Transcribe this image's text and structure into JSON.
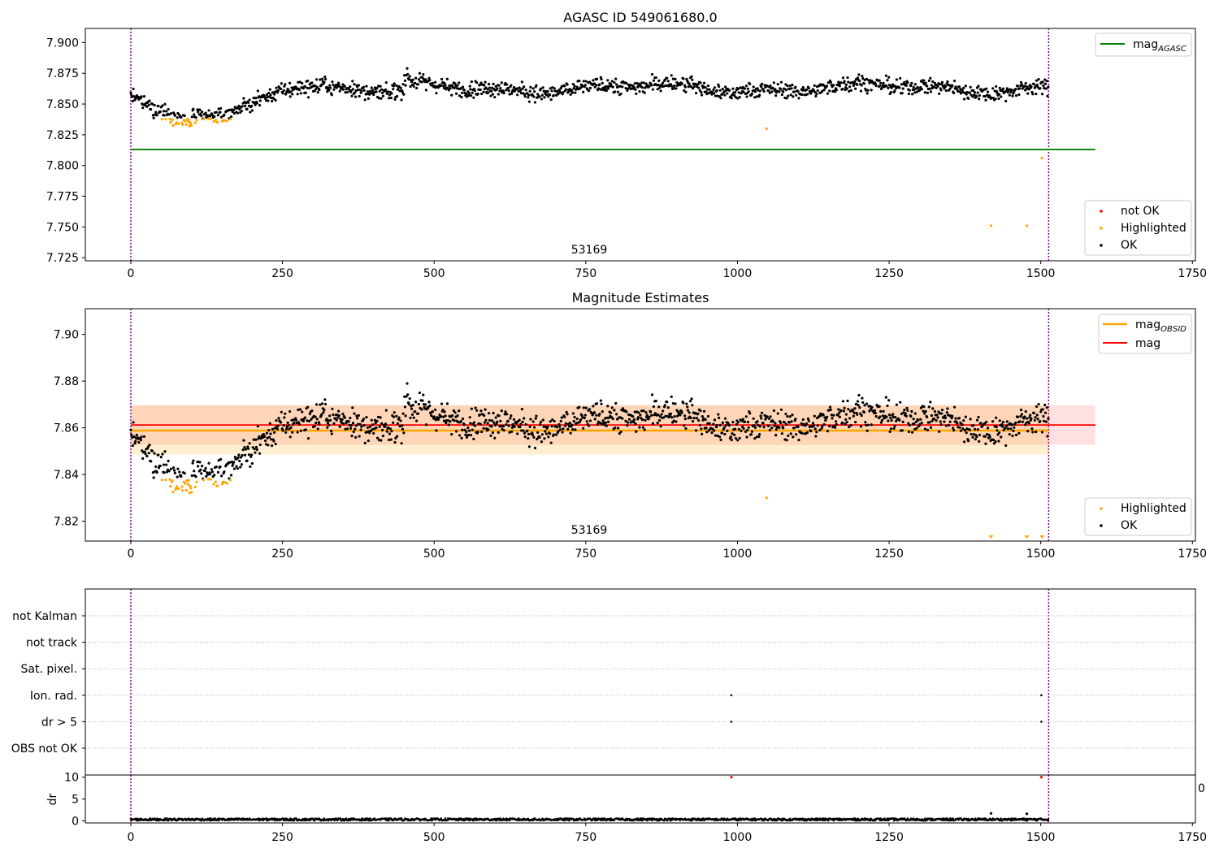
{
  "chart_data": [
    {
      "type": "scatter",
      "title": "AGASC ID 549061680.0",
      "xlim": [
        -75,
        1755
      ],
      "ylim": [
        7.7225,
        7.9115
      ],
      "xticks": [
        0,
        250,
        500,
        750,
        1000,
        1250,
        1500,
        1750
      ],
      "yticks": [
        7.725,
        7.75,
        7.775,
        7.8,
        7.825,
        7.85,
        7.875,
        7.9
      ],
      "ytick_decimals": 3,
      "grid": false,
      "annotation": "53169",
      "vlines": {
        "x": [
          0,
          1513
        ],
        "color": "#800080",
        "style": "dotted"
      },
      "mag_agasc_value": 7.813,
      "series_legend": {
        "placement": "lower-right",
        "entries": [
          {
            "label": "not OK",
            "color": "#ff0000"
          },
          {
            "label": "Highlighted",
            "color": "#ffa500"
          },
          {
            "label": "OK",
            "color": "#000000"
          }
        ]
      },
      "line_legend": {
        "placement": "upper-right",
        "entries": [
          {
            "label": "mag",
            "subscript": "AGASC",
            "color": "#008000"
          }
        ]
      },
      "highlighted_points": [
        [
          1048,
          7.83
        ],
        [
          1502,
          7.806
        ],
        [
          1418,
          7.751
        ],
        [
          1477,
          7.751
        ]
      ],
      "not_ok_points": []
    },
    {
      "type": "scatter",
      "title": "Magnitude Estimates",
      "xlim": [
        -75,
        1755
      ],
      "ylim": [
        7.8115,
        7.911
      ],
      "xticks": [
        0,
        250,
        500,
        750,
        1000,
        1250,
        1500,
        1750
      ],
      "yticks": [
        7.82,
        7.84,
        7.86,
        7.88,
        7.9
      ],
      "ytick_decimals": 2,
      "grid": false,
      "annotation": "53169",
      "vlines": {
        "x": [
          0,
          1513
        ],
        "color": "#800080",
        "style": "dotted"
      },
      "mag_value": 7.8612,
      "mag_band": [
        7.8527,
        7.8697
      ],
      "mag_obsid_value": 7.8588,
      "mag_obsid_band": [
        7.8485,
        7.8695
      ],
      "series_legend": {
        "placement": "lower-right",
        "entries": [
          {
            "label": "Highlighted",
            "color": "#ffa500"
          },
          {
            "label": "OK",
            "color": "#000000"
          }
        ]
      },
      "line_legend": {
        "placement": "upper-right",
        "entries": [
          {
            "label": "mag",
            "subscript": "OBSID",
            "color": "#ffa500"
          },
          {
            "label": "mag",
            "subscript": "",
            "color": "#ff0000"
          }
        ]
      },
      "highlighted_points": [
        [
          1048,
          7.83
        ]
      ],
      "below_range_markers": [
        1418,
        1477,
        1502
      ]
    },
    {
      "type": "scatter",
      "categories": [
        "OBS not OK",
        "dr > 5",
        "Ion. rad.",
        "Sat. pixel.",
        "not track",
        "not Kalman"
      ],
      "xlim": [
        -75,
        1755
      ],
      "grid": true,
      "vlines": {
        "x": [
          0,
          1513
        ],
        "color": "#800080",
        "style": "dotted"
      },
      "flag_points": [
        {
          "category": "Ion. rad.",
          "x": [
            990,
            1501
          ]
        },
        {
          "category": "dr > 5",
          "x": [
            990,
            1501
          ]
        }
      ]
    },
    {
      "type": "scatter",
      "ylabel": "dr",
      "xlim": [
        -75,
        1755
      ],
      "ylim": [
        -0.5,
        10.5
      ],
      "xticks": [
        0,
        250,
        500,
        750,
        1000,
        1250,
        1500,
        1750
      ],
      "yticks": [
        0,
        5,
        10
      ],
      "vlines": {
        "x": [
          0,
          1513
        ],
        "color": "#800080",
        "style": "dotted"
      },
      "baseline_dr": 0.3,
      "outlier_points": [
        [
          990,
          10,
          "#ff0000"
        ],
        [
          1501,
          10,
          "#ff0000"
        ],
        [
          1418,
          1.7,
          "#000000"
        ],
        [
          1477,
          1.6,
          "#000000"
        ]
      ],
      "stray_label": "0"
    }
  ],
  "colors": {
    "ok": "#000000",
    "highlighted": "#ffa500",
    "not_ok": "#ff0000",
    "agasc_line": "#008000",
    "obsid_line": "#ffa500",
    "mag_line": "#ff0000",
    "vline": "#800080"
  }
}
